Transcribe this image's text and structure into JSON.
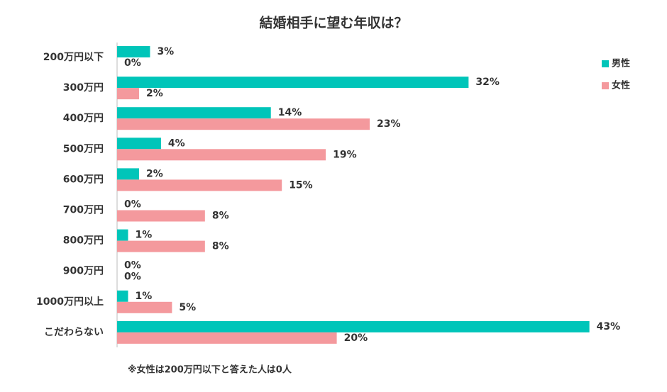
{
  "chart_data": {
    "type": "hbar",
    "title": "結婚相手に望む年収は？",
    "categories": [
      "200万円以下",
      "300万円",
      "400万円",
      "500万円",
      "600万円",
      "700万円",
      "800万円",
      "900万円",
      "1000万円以上",
      "こだわらない"
    ],
    "series": [
      {
        "name": "男性",
        "color": "#00c5b9",
        "values": [
          3,
          32,
          14,
          4,
          2,
          0,
          1,
          0,
          1,
          43
        ],
        "value_labels": [
          "3%",
          "32%",
          "14%",
          "4%",
          "2%",
          "0%",
          "1%",
          "0%",
          "1%",
          "43%"
        ]
      },
      {
        "name": "女性",
        "color": "#f4999d",
        "values": [
          0,
          2,
          23,
          19,
          15,
          8,
          8,
          0,
          5,
          20
        ],
        "value_labels": [
          "0%",
          "2%",
          "23%",
          "19%",
          "15%",
          "8%",
          "8%",
          "0%",
          "5%",
          "20%"
        ]
      }
    ],
    "legend": "right",
    "note": "※女性は200万円以下と答えた人は0人"
  }
}
